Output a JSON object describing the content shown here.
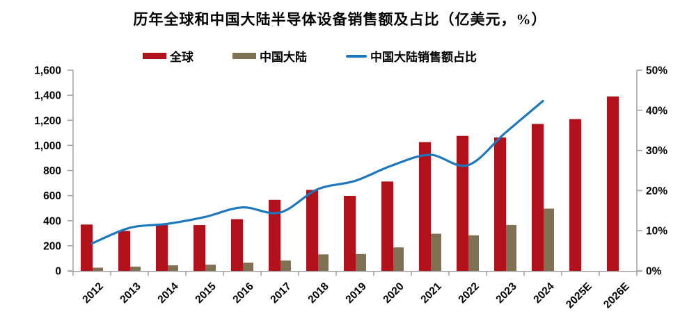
{
  "title": "历年全球和中国大陆半导体设备销售额及占比（亿美元，%）",
  "legend": [
    {
      "label": "全球",
      "color": "#B1111B",
      "type": "swatch"
    },
    {
      "label": "中国大陆",
      "color": "#7F7153",
      "type": "swatch"
    },
    {
      "label": "中国大陆销售额占比",
      "color": "#1B78BE",
      "type": "line"
    }
  ],
  "chart_data": {
    "type": "bar",
    "title": "历年全球和中国大陆半导体设备销售额及占比（亿美元，%）",
    "categories": [
      "2012",
      "2013",
      "2014",
      "2015",
      "2016",
      "2017",
      "2018",
      "2019",
      "2020",
      "2021",
      "2022",
      "2023",
      "2024",
      "2025E",
      "2026E"
    ],
    "series": [
      {
        "name": "全球",
        "type": "bar",
        "axis": "left",
        "color": "#B1111B",
        "values": [
          369,
          318,
          375,
          365,
          412,
          566,
          645,
          598,
          712,
          1026,
          1076,
          1063,
          1171,
          1210,
          1390
        ]
      },
      {
        "name": "中国大陆",
        "type": "bar",
        "axis": "left",
        "color": "#7F7153",
        "values": [
          25,
          34,
          44,
          49,
          65,
          82,
          131,
          134,
          187,
          296,
          283,
          366,
          496,
          null,
          null
        ]
      },
      {
        "name": "中国大陆销售额占比",
        "type": "line",
        "axis": "right",
        "color": "#1B78BE",
        "values": [
          6.8,
          10.7,
          11.7,
          13.4,
          15.8,
          14.5,
          20.3,
          22.4,
          26.3,
          28.9,
          26.3,
          34.4,
          42.3,
          null,
          null
        ]
      }
    ],
    "left_axis": {
      "min": 0,
      "max": 1600,
      "step": 200,
      "tick_labels": [
        "0",
        "200",
        "400",
        "600",
        "800",
        "1,000",
        "1,200",
        "1,400",
        "1,600"
      ]
    },
    "right_axis": {
      "min": 0,
      "max": 50,
      "step": 10,
      "tick_labels": [
        "0%",
        "10%",
        "20%",
        "30%",
        "40%",
        "50%"
      ]
    },
    "grid": false,
    "legend_position": "top",
    "axis_color": "#A6A6A6",
    "label_color": "#000000"
  }
}
